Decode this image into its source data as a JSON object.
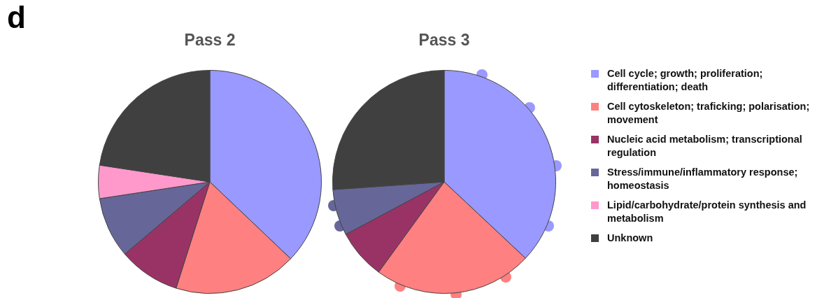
{
  "chart_data": [
    {
      "type": "pie",
      "title": "Pass 2",
      "annotations": [
        "d"
      ],
      "legend": "right",
      "categories": [
        "Cell cycle; growth; proliferation; differentiation; death",
        "Cell cytoskeleton; traficking; polarisation; movement",
        "Nucleic acid metabolism; transcriptional regulation",
        "Stress/immune/inflammatory response; homeostasis",
        "Lipid/carbohydrate/protein synthesis and metabolism",
        "Unknown"
      ],
      "values": [
        37.1,
        17.8,
        8.9,
        8.8,
        4.8,
        22.6
      ],
      "colors": [
        "#9999ff",
        "#ff8080",
        "#993366",
        "#666699",
        "#ff99cc",
        "#404040"
      ]
    },
    {
      "type": "pie",
      "title": "Pass 3",
      "categories": [
        null,
        null,
        null,
        null,
        null,
        null
      ],
      "values": [
        37.0,
        23.0,
        7.2,
        6.7,
        0,
        26.1
      ],
      "colors": [
        "#9999ff",
        "#ff8080",
        "#993366",
        "#666699",
        "#ff99cc",
        "#404040"
      ]
    }
  ]
}
